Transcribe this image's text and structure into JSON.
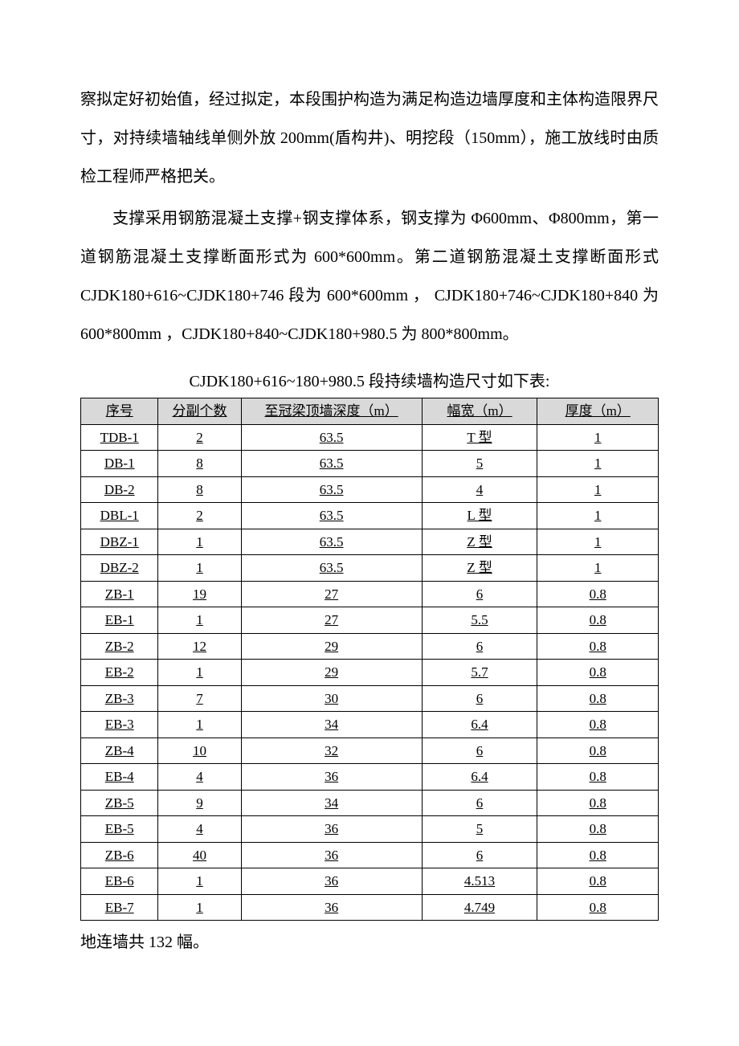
{
  "paragraphs": {
    "p1": "察拟定好初始值，经过拟定，本段围护构造为满足构造边墙厚度和主体构造限界尺寸，对持续墙轴线单侧外放 200mm(盾构井)、明挖段（150mm），施工放线时由质检工程师严格把关。",
    "p2": "支撑采用钢筋混凝土支撑+钢支撑体系，钢支撑为 Φ600mm、Φ800mm，第一道钢筋混凝土支撑断面形式为 600*600mm。第二道钢筋混凝土支撑断面形式 CJDK180+616~CJDK180+746 段为 600*600mm ， CJDK180+746~CJDK180+840 为 600*800mm ，CJDK180+840~CJDK180+980.5 为 800*800mm。"
  },
  "table": {
    "title": "CJDK180+616~180+980.5 段持续墙构造尺寸如下表:",
    "columns": [
      "序号",
      "分副个数",
      "至冠梁顶墙深度（m）",
      "幅宽（m）",
      "厚度（m）"
    ],
    "col_widths": [
      "col-0",
      "col-1",
      "col-2",
      "col-3",
      "col-4"
    ],
    "header_bg": "#d9d9d9",
    "border_color": "#000000",
    "rows": [
      [
        "TDB-1",
        "2",
        "63.5",
        "T 型",
        "1"
      ],
      [
        "DB-1",
        "8",
        "63.5",
        "5",
        "1"
      ],
      [
        "DB-2",
        "8",
        "63.5",
        "4",
        "1"
      ],
      [
        "DBL-1",
        "2",
        "63.5",
        "L 型",
        "1"
      ],
      [
        "DBZ-1",
        "1",
        "63.5",
        "Z 型",
        "1"
      ],
      [
        "DBZ-2",
        "1",
        "63.5",
        "Z 型",
        "1"
      ],
      [
        "ZB-1",
        "19",
        "27",
        "6",
        "0.8"
      ],
      [
        "EB-1",
        "1",
        "27",
        "5.5",
        "0.8"
      ],
      [
        "ZB-2",
        "12",
        "29",
        "6",
        "0.8"
      ],
      [
        "EB-2",
        "1",
        "29",
        "5.7",
        "0.8"
      ],
      [
        "ZB-3",
        "7",
        "30",
        "6",
        "0.8"
      ],
      [
        "EB-3",
        "1",
        "34",
        "6.4",
        "0.8"
      ],
      [
        "ZB-4",
        "10",
        "32",
        "6",
        "0.8"
      ],
      [
        "EB-4",
        "4",
        "36",
        "6.4",
        "0.8"
      ],
      [
        "ZB-5",
        "9",
        "34",
        "6",
        "0.8"
      ],
      [
        "EB-5",
        "4",
        "36",
        "5",
        "0.8"
      ],
      [
        "ZB-6",
        "40",
        "36",
        "6",
        "0.8"
      ],
      [
        "EB-6",
        "1",
        "36",
        "4.513",
        "0.8"
      ],
      [
        "EB-7",
        "1",
        "36",
        "4.749",
        "0.8"
      ]
    ]
  },
  "footer": "地连墙共 132 幅。"
}
